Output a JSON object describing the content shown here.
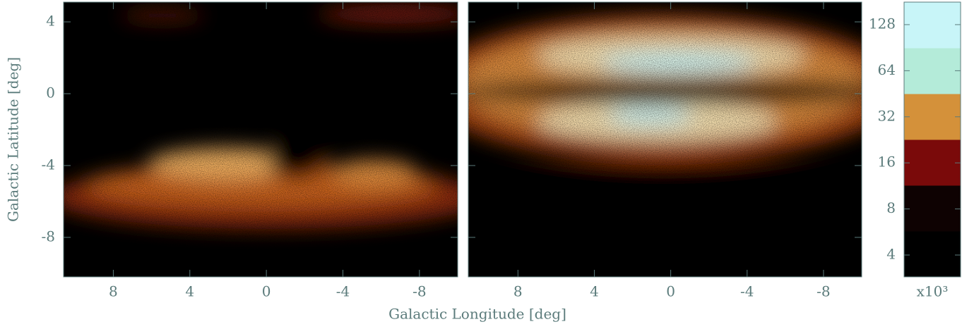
{
  "chart_data": [
    {
      "type": "map",
      "xlabel": "Galactic Longitude [deg]",
      "ylabel": "Galactic Latitude [deg]",
      "xlim": [
        10.6,
        -10
      ],
      "ylim": [
        -10.2,
        5.1
      ],
      "xticks": [
        8,
        4,
        0,
        -4,
        -8
      ],
      "yticks": [
        4,
        0,
        -4,
        -8
      ]
    },
    {
      "type": "map",
      "xlim": [
        10.6,
        -10
      ],
      "ylim": [
        -10.2,
        5.1
      ],
      "xticks": [
        8,
        4,
        0,
        -4,
        -8
      ],
      "yticks": [
        4,
        0,
        -4,
        -8
      ]
    },
    {
      "type": "colorbar",
      "log_scale": true,
      "ylim": [
        2.88,
        179.6
      ],
      "yticks": [
        4,
        8,
        16,
        32,
        64,
        128
      ],
      "unit_label": "x10³",
      "colors": [
        "#000000",
        "#0e0202",
        "#7a0a0a",
        "#d4913a",
        "#b4ebd9",
        "#c8f5f8"
      ]
    }
  ]
}
